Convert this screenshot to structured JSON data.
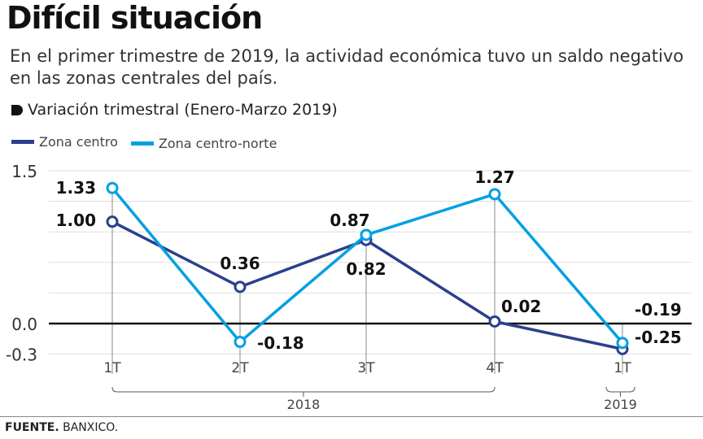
{
  "header": {
    "title": "Difícil situación",
    "subtitle": "En el primer trimestre de 2019, la actividad económica tuvo un saldo negativo en las zonas centrales del país."
  },
  "section_label": "Variación trimestral (Enero-Marzo 2019)",
  "footer": {
    "source_label": "FUENTE.",
    "source": "BANXICO."
  },
  "chart_data": {
    "type": "line",
    "categories": [
      "1T",
      "2T",
      "3T",
      "4T",
      "1T"
    ],
    "groups": [
      {
        "label": "2018",
        "from": 0,
        "to": 3
      },
      {
        "label": "2019",
        "from": 4,
        "to": 4
      }
    ],
    "ylim": [
      -0.3,
      1.5
    ],
    "yticks": [
      1.5,
      0.0,
      -0.3
    ],
    "ytick_labels": [
      "1.5",
      "0.0",
      "-0.3"
    ],
    "grid": true,
    "legend_position": "top-left",
    "series": [
      {
        "name": "Zona centro",
        "color": "#2b3f8c",
        "values": [
          1.0,
          0.36,
          0.82,
          0.02,
          -0.25
        ],
        "labels": [
          "1.00",
          "0.36",
          "0.82",
          "0.02",
          "-0.25"
        ]
      },
      {
        "name": "Zona centro-norte",
        "color": "#00a0e3",
        "values": [
          1.33,
          -0.18,
          0.87,
          1.27,
          -0.19
        ],
        "labels": [
          "1.33",
          "-0.18",
          "0.87",
          "1.27",
          "-0.19"
        ]
      }
    ]
  }
}
